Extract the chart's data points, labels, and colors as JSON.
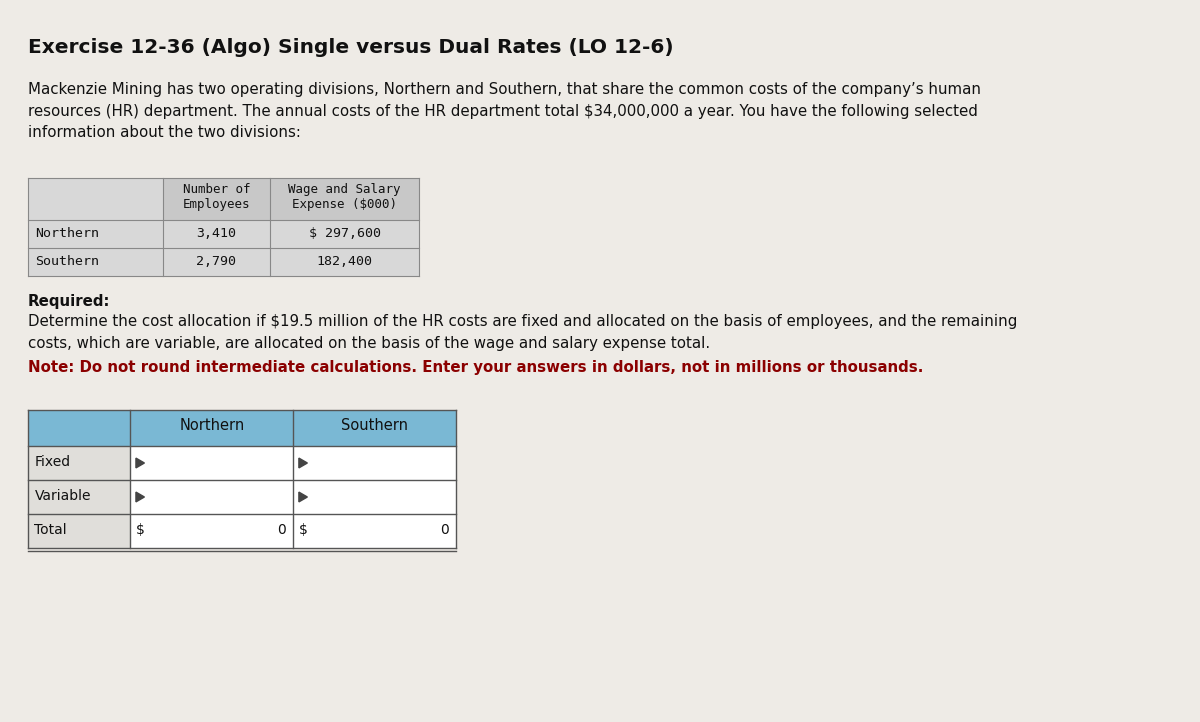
{
  "title": "Exercise 12-36 (Algo) Single versus Dual Rates (LO 12-6)",
  "paragraph1": "Mackenzie Mining has two operating divisions, Northern and Southern, that share the common costs of the company’s human\nresources (HR) department. The annual costs of the HR department total $34,000,000 a year. You have the following selected\ninformation about the two divisions:",
  "info_table": {
    "col1_header": "Number of\nEmployees",
    "col2_header": "Wage and Salary\nExpense ($000)",
    "rows": [
      {
        "label": "Northern",
        "employees": "3,410",
        "wage": "$ 297,600"
      },
      {
        "label": "Southern",
        "employees": "2,790",
        "wage": "182,400"
      }
    ]
  },
  "required_label": "Required:",
  "paragraph2": "Determine the cost allocation if $19.5 million of the HR costs are fixed and allocated on the basis of employees, and the remaining\ncosts, which are variable, are allocated on the basis of the wage and salary expense total.",
  "note": "Note: Do not round intermediate calculations. Enter your answers in dollars, not in millions or thousands.",
  "answer_table": {
    "col_headers": [
      "",
      "Northern",
      "Southern"
    ],
    "rows": [
      {
        "label": "Fixed",
        "north": "",
        "south": "",
        "show_dollar": false
      },
      {
        "label": "Variable",
        "north": "",
        "south": "",
        "show_dollar": false
      },
      {
        "label": "Total",
        "north": "0",
        "south": "0",
        "show_dollar": true
      }
    ]
  },
  "bg_color": "#eeebe6",
  "table_header_bg": "#7ab8d4",
  "info_table_header_bg": "#c8c8c8",
  "info_table_body_bg": "#d8d8d8",
  "info_table_border": "#888888",
  "ans_label_bg": "#e0deda",
  "ans_cell_bg": "#ffffff",
  "ans_border": "#555555",
  "triangle_color": "#444444",
  "note_color": "#8B0000"
}
